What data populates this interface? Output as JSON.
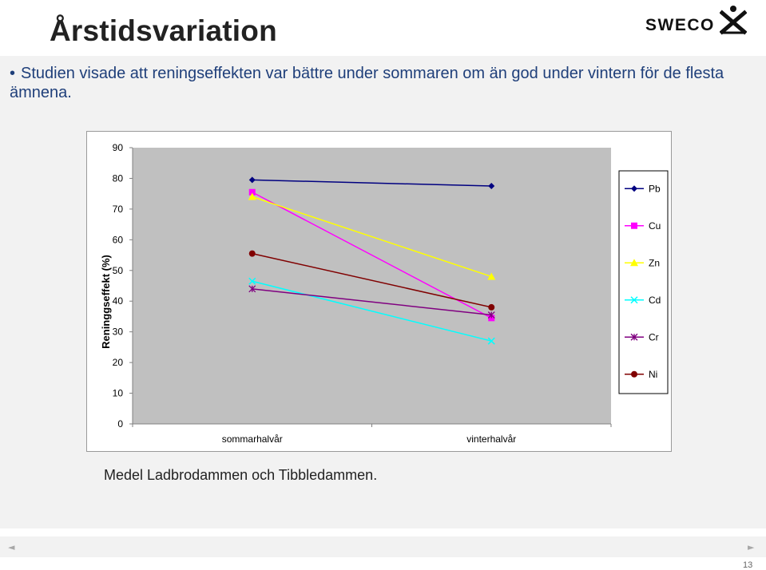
{
  "slide": {
    "title": "Årstidsvariation",
    "bullet": "Studien visade att reningseffekten var bättre under sommaren om än god under vintern för de flesta ämnena.",
    "caption": "Medel Ladbrodammen och Tibbledammen.",
    "page_number": "13"
  },
  "logo": {
    "text": "SWECO",
    "mark_icon": "sweco-figure-icon"
  },
  "nav": {
    "prev_icon": "◄",
    "next_icon": "►"
  },
  "colors": {
    "title": "#222222",
    "bullet": "#1f3f7a",
    "plot_bg": "#c0c0c0"
  },
  "chart_data": {
    "type": "line",
    "title": "",
    "xlabel": "",
    "ylabel": "Reninggseffekt (%)",
    "ylim": [
      0,
      90
    ],
    "yticks": [
      0,
      10,
      20,
      30,
      40,
      50,
      60,
      70,
      80,
      90
    ],
    "categories": [
      "sommarhalvår",
      "vinterhalvår"
    ],
    "legend_position": "right",
    "grid": false,
    "series": [
      {
        "name": "Pb",
        "values": [
          79.5,
          77.5
        ],
        "color": "#000080",
        "marker": "diamond"
      },
      {
        "name": "Cu",
        "values": [
          75.5,
          34.5
        ],
        "color": "#ff00ff",
        "marker": "square"
      },
      {
        "name": "Zn",
        "values": [
          74,
          48
        ],
        "color": "#ffff00",
        "marker": "triangle"
      },
      {
        "name": "Cd",
        "values": [
          46.5,
          27
        ],
        "color": "#00ffff",
        "marker": "x"
      },
      {
        "name": "Cr",
        "values": [
          44,
          35.5
        ],
        "color": "#800080",
        "marker": "star"
      },
      {
        "name": "Ni",
        "values": [
          55.5,
          38
        ],
        "color": "#800000",
        "marker": "circle"
      }
    ]
  }
}
